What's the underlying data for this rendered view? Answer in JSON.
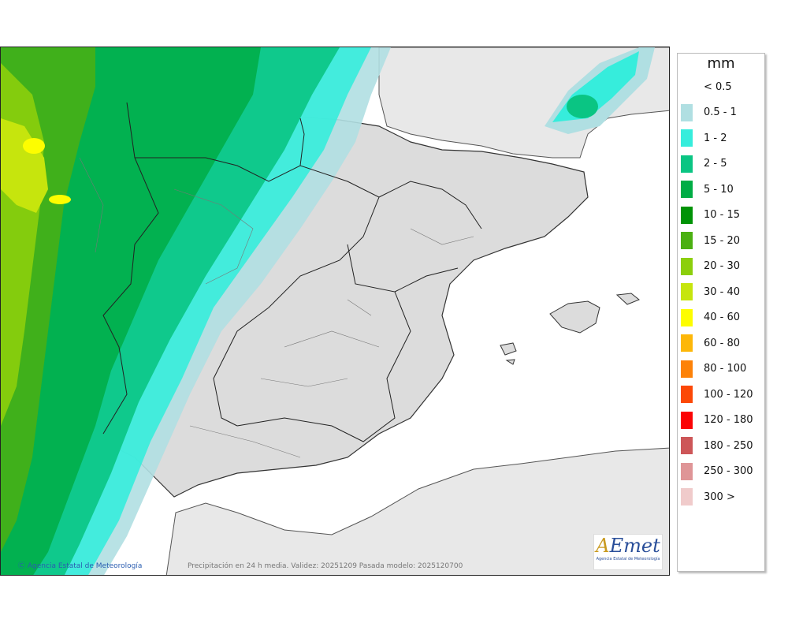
{
  "legend": {
    "title": "mm",
    "items": [
      {
        "label": "< 0.5",
        "color": "#ffffff"
      },
      {
        "label": "0.5 - 1",
        "color": "#b0dfe2"
      },
      {
        "label": "1 - 2",
        "color": "#36eddc"
      },
      {
        "label": "2 - 5",
        "color": "#0ac583"
      },
      {
        "label": "5 - 10",
        "color": "#00ad45"
      },
      {
        "label": "10 - 15",
        "color": "#009306"
      },
      {
        "label": "15 - 20",
        "color": "#4bb012"
      },
      {
        "label": "20 - 30",
        "color": "#8ccf0c"
      },
      {
        "label": "30 - 40",
        "color": "#c6e50d"
      },
      {
        "label": "40 - 60",
        "color": "#fdfd00"
      },
      {
        "label": "60 - 80",
        "color": "#fdb709"
      },
      {
        "label": "80 - 100",
        "color": "#fd8208"
      },
      {
        "label": "100 - 120",
        "color": "#fc4806"
      },
      {
        "label": "120 - 180",
        "color": "#fb0405"
      },
      {
        "label": "180 - 250",
        "color": "#cd5658"
      },
      {
        "label": "250 - 300",
        "color": "#df9597"
      },
      {
        "label": "300 >",
        "color": "#f0cbcb"
      }
    ]
  },
  "footer": {
    "credit": "Agencia Estatal de Meteorología",
    "caption": "Precipitación en 24 h media. Validez: 20251209 Pasada modelo: 2025120700"
  },
  "logo": {
    "wordmark_a": "A",
    "wordmark_rest": "Emet",
    "subtitle": "Agencia Estatal de Meteorología"
  }
}
